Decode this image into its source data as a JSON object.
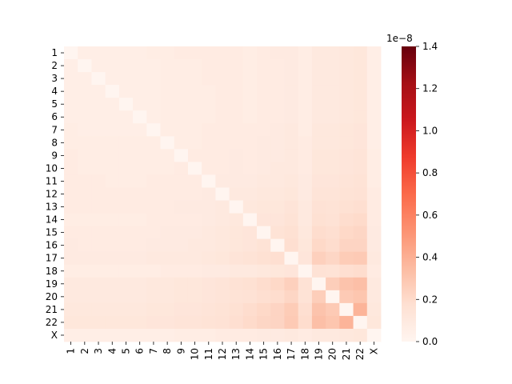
{
  "chart_data": {
    "type": "heatmap",
    "title": "",
    "xlabel": "",
    "ylabel": "",
    "labels": [
      "1",
      "2",
      "3",
      "4",
      "5",
      "6",
      "7",
      "8",
      "9",
      "10",
      "11",
      "12",
      "13",
      "14",
      "15",
      "16",
      "17",
      "18",
      "19",
      "20",
      "21",
      "22",
      "X"
    ],
    "matrix": [
      [
        0.0,
        0.06,
        0.06,
        0.06,
        0.06,
        0.06,
        0.07,
        0.07,
        0.08,
        0.08,
        0.08,
        0.08,
        0.08,
        0.07,
        0.08,
        0.09,
        0.09,
        0.07,
        0.1,
        0.1,
        0.11,
        0.12,
        0.06
      ],
      [
        0.06,
        0.0,
        0.06,
        0.06,
        0.06,
        0.06,
        0.06,
        0.07,
        0.07,
        0.07,
        0.08,
        0.08,
        0.08,
        0.07,
        0.08,
        0.08,
        0.09,
        0.07,
        0.1,
        0.1,
        0.11,
        0.12,
        0.06
      ],
      [
        0.06,
        0.06,
        0.0,
        0.06,
        0.06,
        0.06,
        0.06,
        0.07,
        0.07,
        0.07,
        0.08,
        0.08,
        0.08,
        0.07,
        0.08,
        0.08,
        0.09,
        0.07,
        0.1,
        0.1,
        0.11,
        0.12,
        0.06
      ],
      [
        0.06,
        0.06,
        0.06,
        0.0,
        0.06,
        0.06,
        0.06,
        0.07,
        0.07,
        0.07,
        0.07,
        0.08,
        0.08,
        0.07,
        0.08,
        0.08,
        0.09,
        0.07,
        0.1,
        0.1,
        0.11,
        0.12,
        0.06
      ],
      [
        0.06,
        0.06,
        0.06,
        0.06,
        0.0,
        0.06,
        0.06,
        0.07,
        0.07,
        0.07,
        0.07,
        0.08,
        0.08,
        0.07,
        0.08,
        0.08,
        0.09,
        0.07,
        0.1,
        0.1,
        0.11,
        0.12,
        0.06
      ],
      [
        0.06,
        0.06,
        0.06,
        0.06,
        0.06,
        0.0,
        0.06,
        0.07,
        0.07,
        0.07,
        0.07,
        0.08,
        0.08,
        0.07,
        0.08,
        0.08,
        0.09,
        0.07,
        0.1,
        0.1,
        0.11,
        0.12,
        0.06
      ],
      [
        0.07,
        0.06,
        0.06,
        0.06,
        0.06,
        0.06,
        0.0,
        0.07,
        0.07,
        0.07,
        0.08,
        0.08,
        0.08,
        0.08,
        0.08,
        0.09,
        0.1,
        0.07,
        0.11,
        0.11,
        0.12,
        0.13,
        0.06
      ],
      [
        0.07,
        0.07,
        0.07,
        0.07,
        0.07,
        0.07,
        0.07,
        0.0,
        0.07,
        0.07,
        0.08,
        0.08,
        0.08,
        0.08,
        0.09,
        0.09,
        0.1,
        0.08,
        0.11,
        0.11,
        0.12,
        0.13,
        0.06
      ],
      [
        0.08,
        0.07,
        0.07,
        0.07,
        0.07,
        0.07,
        0.07,
        0.07,
        0.0,
        0.08,
        0.08,
        0.08,
        0.09,
        0.08,
        0.09,
        0.09,
        0.1,
        0.08,
        0.12,
        0.12,
        0.13,
        0.14,
        0.07
      ],
      [
        0.08,
        0.07,
        0.07,
        0.07,
        0.07,
        0.07,
        0.07,
        0.07,
        0.08,
        0.0,
        0.08,
        0.08,
        0.09,
        0.08,
        0.09,
        0.1,
        0.1,
        0.08,
        0.12,
        0.12,
        0.13,
        0.14,
        0.07
      ],
      [
        0.08,
        0.08,
        0.08,
        0.07,
        0.07,
        0.07,
        0.08,
        0.08,
        0.08,
        0.08,
        0.0,
        0.09,
        0.09,
        0.09,
        0.1,
        0.1,
        0.11,
        0.09,
        0.13,
        0.13,
        0.14,
        0.15,
        0.07
      ],
      [
        0.08,
        0.08,
        0.08,
        0.08,
        0.08,
        0.08,
        0.08,
        0.08,
        0.08,
        0.08,
        0.09,
        0.0,
        0.1,
        0.1,
        0.11,
        0.11,
        0.12,
        0.09,
        0.14,
        0.14,
        0.15,
        0.16,
        0.08
      ],
      [
        0.08,
        0.08,
        0.08,
        0.08,
        0.08,
        0.08,
        0.08,
        0.08,
        0.09,
        0.09,
        0.09,
        0.1,
        0.0,
        0.11,
        0.12,
        0.12,
        0.14,
        0.1,
        0.16,
        0.15,
        0.17,
        0.18,
        0.08
      ],
      [
        0.07,
        0.07,
        0.07,
        0.07,
        0.07,
        0.07,
        0.08,
        0.08,
        0.08,
        0.08,
        0.09,
        0.1,
        0.11,
        0.0,
        0.13,
        0.13,
        0.15,
        0.1,
        0.17,
        0.16,
        0.19,
        0.2,
        0.08
      ],
      [
        0.08,
        0.08,
        0.08,
        0.08,
        0.08,
        0.08,
        0.08,
        0.09,
        0.09,
        0.09,
        0.1,
        0.11,
        0.12,
        0.13,
        0.0,
        0.15,
        0.17,
        0.11,
        0.19,
        0.18,
        0.21,
        0.22,
        0.09
      ],
      [
        0.09,
        0.08,
        0.08,
        0.08,
        0.08,
        0.08,
        0.09,
        0.09,
        0.09,
        0.1,
        0.1,
        0.11,
        0.12,
        0.13,
        0.15,
        0.0,
        0.18,
        0.12,
        0.21,
        0.19,
        0.23,
        0.23,
        0.09
      ],
      [
        0.09,
        0.09,
        0.09,
        0.09,
        0.09,
        0.09,
        0.1,
        0.1,
        0.1,
        0.1,
        0.11,
        0.12,
        0.14,
        0.15,
        0.17,
        0.18,
        0.0,
        0.13,
        0.25,
        0.22,
        0.27,
        0.28,
        0.1
      ],
      [
        0.07,
        0.07,
        0.07,
        0.07,
        0.07,
        0.07,
        0.07,
        0.08,
        0.08,
        0.08,
        0.09,
        0.09,
        0.1,
        0.1,
        0.11,
        0.12,
        0.13,
        0.0,
        0.16,
        0.15,
        0.18,
        0.19,
        0.08
      ],
      [
        0.1,
        0.1,
        0.1,
        0.1,
        0.1,
        0.1,
        0.11,
        0.11,
        0.12,
        0.12,
        0.13,
        0.14,
        0.16,
        0.17,
        0.19,
        0.21,
        0.25,
        0.16,
        0.0,
        0.26,
        0.31,
        0.33,
        0.1
      ],
      [
        0.1,
        0.1,
        0.1,
        0.1,
        0.1,
        0.1,
        0.11,
        0.11,
        0.12,
        0.12,
        0.13,
        0.14,
        0.15,
        0.16,
        0.18,
        0.19,
        0.22,
        0.15,
        0.26,
        0.0,
        0.28,
        0.3,
        0.1
      ],
      [
        0.11,
        0.11,
        0.11,
        0.11,
        0.11,
        0.11,
        0.12,
        0.12,
        0.13,
        0.13,
        0.14,
        0.15,
        0.17,
        0.19,
        0.21,
        0.23,
        0.27,
        0.18,
        0.31,
        0.28,
        0.0,
        0.38,
        0.11
      ],
      [
        0.12,
        0.12,
        0.12,
        0.12,
        0.12,
        0.12,
        0.13,
        0.13,
        0.14,
        0.14,
        0.15,
        0.16,
        0.18,
        0.2,
        0.22,
        0.23,
        0.28,
        0.19,
        0.33,
        0.3,
        0.38,
        0.0,
        0.12
      ],
      [
        0.06,
        0.06,
        0.06,
        0.06,
        0.06,
        0.06,
        0.06,
        0.06,
        0.07,
        0.07,
        0.07,
        0.08,
        0.08,
        0.08,
        0.09,
        0.09,
        0.1,
        0.08,
        0.1,
        0.1,
        0.11,
        0.12,
        0.0
      ]
    ],
    "colorbar": {
      "range": [
        0.0,
        1.4
      ],
      "offset_text": "1e−8",
      "ticks": [
        "0.0",
        "0.2",
        "0.4",
        "0.6",
        "0.8",
        "1.0",
        "1.2",
        "1.4"
      ],
      "cmap_stops": [
        "#fff5f0",
        "#fee0d2",
        "#fcbba1",
        "#fc9272",
        "#fb6a4a",
        "#ef3b2c",
        "#cb181d",
        "#a50f15",
        "#67000d"
      ]
    },
    "grid": false,
    "legend": "colorbar-right"
  }
}
